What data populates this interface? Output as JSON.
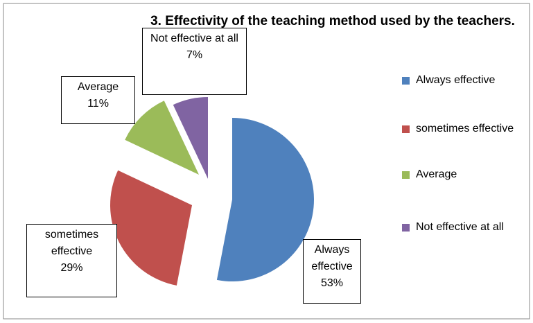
{
  "chart_data": {
    "type": "pie",
    "title": "3. Effectivity of the teaching method used by the teachers.",
    "categories": [
      "Always effective",
      "sometimes effective",
      "Average",
      "Not effective at all"
    ],
    "values": [
      53,
      29,
      11,
      7
    ],
    "value_labels": [
      "53%",
      "29%",
      "11%",
      "7%"
    ],
    "colors": [
      "#4f81bd",
      "#c0504d",
      "#9bbb59",
      "#8064a2"
    ],
    "legend": "right"
  }
}
